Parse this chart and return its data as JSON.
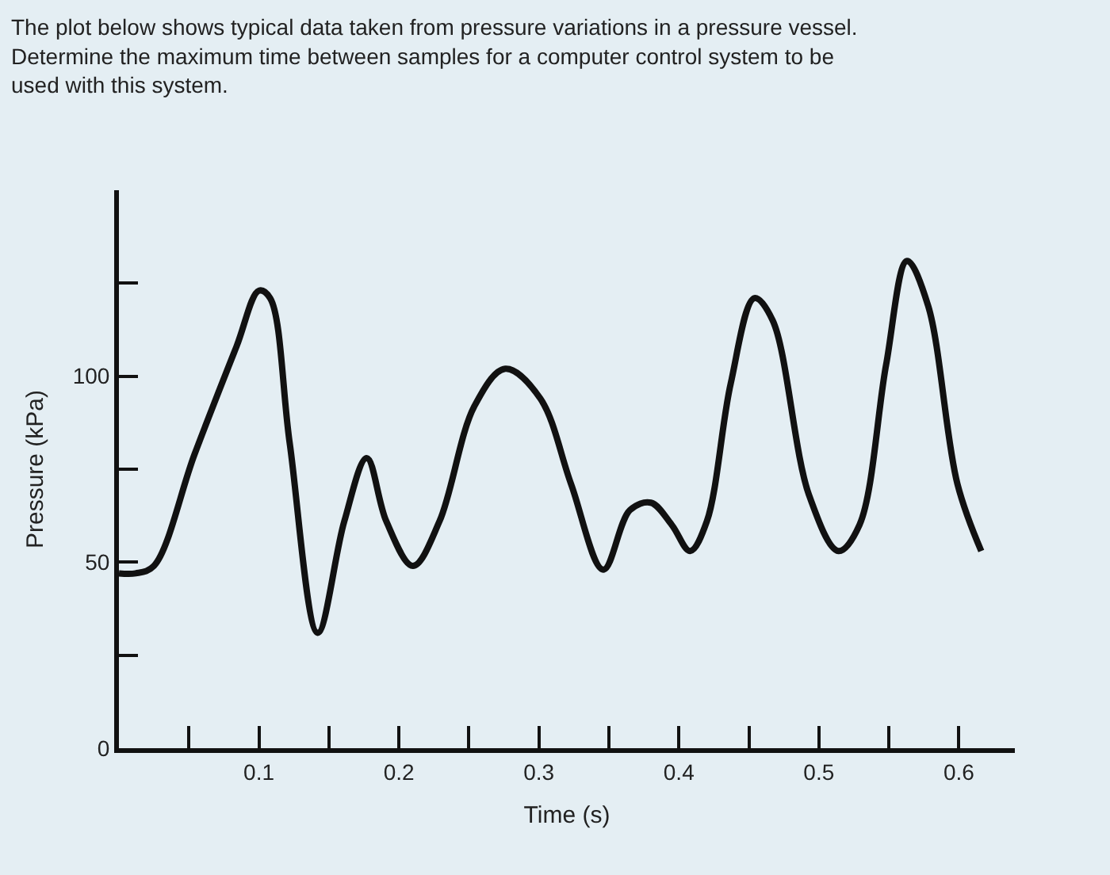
{
  "chart_data": {
    "type": "line",
    "title": "The plot below shows typical data taken from pressure variations in a pressure vessel.\nDetermine the maximum time between samples for a computer control system to be\nused with this system.",
    "xlabel": "Time (s)",
    "ylabel": "Pressure (kPa)",
    "x": [
      0.0,
      0.012,
      0.025,
      0.054,
      0.084,
      0.1,
      0.108,
      0.122,
      0.142,
      0.161,
      0.177,
      0.191,
      0.21,
      0.229,
      0.254,
      0.276,
      0.301,
      0.323,
      0.346,
      0.365,
      0.38,
      0.395,
      0.408,
      0.42,
      0.437,
      0.454,
      0.467,
      0.493,
      0.514,
      0.529,
      0.548,
      0.563,
      0.578,
      0.599,
      0.616
    ],
    "series": [
      {
        "color": "#111111",
        "values": [
          47,
          47,
          49,
          79,
          108,
          123,
          121,
          82,
          31,
          61,
          78,
          61,
          49,
          61,
          92,
          102,
          94,
          71,
          48,
          64,
          66,
          60,
          53,
          61,
          98,
          121,
          115,
          68,
          53,
          60,
          103,
          131,
          119,
          71,
          53
        ]
      }
    ],
    "xlim": [
      0,
      0.64
    ],
    "ylim": [
      0,
      150
    ],
    "xticks": [
      {
        "value": 0.05,
        "label": null
      },
      0.1,
      {
        "value": 0.15,
        "label": null
      },
      0.2,
      {
        "value": 0.25,
        "label": null
      },
      0.3,
      {
        "value": 0.35,
        "label": null
      },
      0.4,
      {
        "value": 0.45,
        "label": null
      },
      0.5,
      {
        "value": 0.55,
        "label": null
      },
      0.6
    ],
    "yticks": [
      0,
      {
        "value": 25,
        "label": null
      },
      50,
      {
        "value": 75,
        "label": null
      },
      100,
      {
        "value": 125,
        "label": null
      }
    ],
    "grid": false,
    "marker": "none",
    "line_style": "solid"
  }
}
